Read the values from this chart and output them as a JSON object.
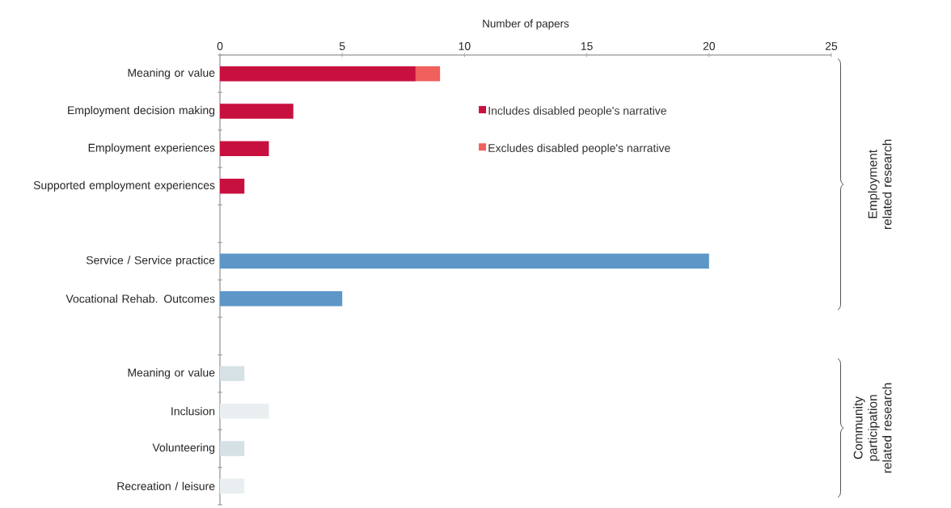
{
  "chart_data": {
    "type": "bar",
    "orientation": "horizontal",
    "stacked": true,
    "xlabel": "Number of papers",
    "categories": [
      "Meaning or value",
      "Employment decision making",
      "Employment experiences",
      "Supported employment experiences",
      null,
      "Service / Service practice",
      "Vocational Rehab. Outcomes",
      null,
      "Meaning or value",
      "Inclusion",
      "Volunteering",
      "Recreation / leisure"
    ],
    "series": [
      {
        "name": "Includes disabled people's narrative",
        "color": "#c8103e",
        "colors": [
          "#c8103e",
          "#c8103e",
          "#c8103e",
          "#c8103e",
          null,
          "#1a6aa6",
          "#1a6aa6",
          null,
          "#d6e1e6",
          "#d6e1e6",
          "#d6e1e6",
          "#d6e1e6"
        ],
        "values": [
          8,
          3,
          2,
          1,
          null,
          0,
          0,
          null,
          1,
          0,
          1,
          0
        ]
      },
      {
        "name": "Excludes disabled people's narrative",
        "color": "#f0605d",
        "colors": [
          "#f0605d",
          "#f0605d",
          "#f0605d",
          "#f0605d",
          null,
          "#5c97c8",
          "#5c97c8",
          null,
          "#e9eff1",
          "#e9eff1",
          "#e9eff1",
          "#e9eff1"
        ],
        "values": [
          1,
          0,
          0,
          0,
          null,
          20,
          5,
          null,
          0,
          2,
          0,
          1
        ]
      }
    ],
    "xlim": [
      0,
      25
    ],
    "xticks": [
      0,
      5,
      10,
      15,
      20,
      25
    ],
    "grid": false,
    "legend": "top right",
    "annotations": [
      "Employment related research",
      "Community participation related research"
    ]
  }
}
